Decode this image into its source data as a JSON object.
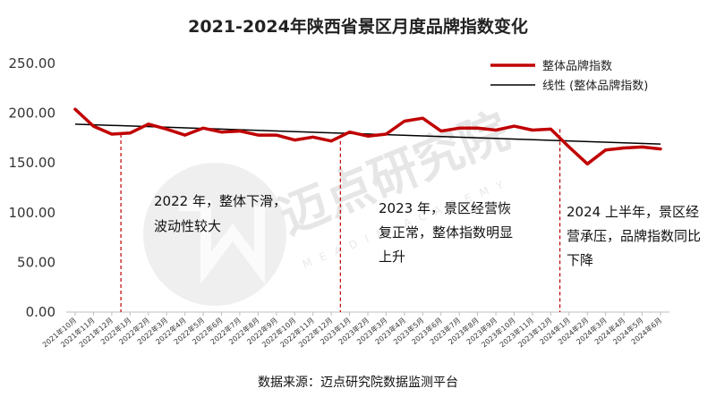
{
  "chart_data": {
    "type": "line",
    "title": "2021-2024年陕西省景区月度品牌指数变化",
    "source_note": "数据来源：迈点研究院数据监测平台",
    "ylim": [
      0,
      250
    ],
    "yticks": [
      "0.00",
      "50.00",
      "100.00",
      "150.00",
      "200.00",
      "250.00"
    ],
    "categories": [
      "2021年10月",
      "2021年11月",
      "2021年12月",
      "2022年1月",
      "2022年2月",
      "2022年3月",
      "2022年4月",
      "2022年5月",
      "2022年6月",
      "2022年7月",
      "2022年8月",
      "2022年9月",
      "2022年10月",
      "2022年11月",
      "2022年12月",
      "2023年1月",
      "2023年2月",
      "2023年3月",
      "2023年4月",
      "2023年5月",
      "2023年6月",
      "2023年7月",
      "2023年8月",
      "2023年9月",
      "2023年10月",
      "2023年11月",
      "2023年12月",
      "2024年1月",
      "2024年2月",
      "2024年3月",
      "2024年4月",
      "2024年5月",
      "2024年6月"
    ],
    "series": [
      {
        "name": "整体品牌指数",
        "color": "#c00000",
        "values": [
          204,
          187,
          179,
          180,
          189,
          184,
          178,
          185,
          181,
          182,
          178,
          178,
          173,
          176,
          172,
          181,
          177,
          179,
          192,
          195,
          182,
          185,
          185,
          183,
          187,
          183,
          184,
          166,
          149,
          163,
          165,
          166,
          164
        ]
      },
      {
        "name": "线性 (整体品牌指数)",
        "color": "#000000",
        "trend_start": 189,
        "trend_end": 169
      }
    ],
    "dividers_after": [
      "2021年12月",
      "2022年12月",
      "2023年12月"
    ],
    "annotations": [
      {
        "lines": [
          "2022 年，整体下滑，",
          "波动性较大"
        ]
      },
      {
        "lines": [
          "2023 年，景区经营恢",
          "复正常，整体指数明显",
          "上升"
        ]
      },
      {
        "lines": [
          "2024 上半年，景区经",
          "营承压，品牌指数同比",
          "下降"
        ]
      }
    ],
    "watermark": {
      "text": "迈点研究院",
      "sub": "MEADIN ACADEMY"
    }
  }
}
